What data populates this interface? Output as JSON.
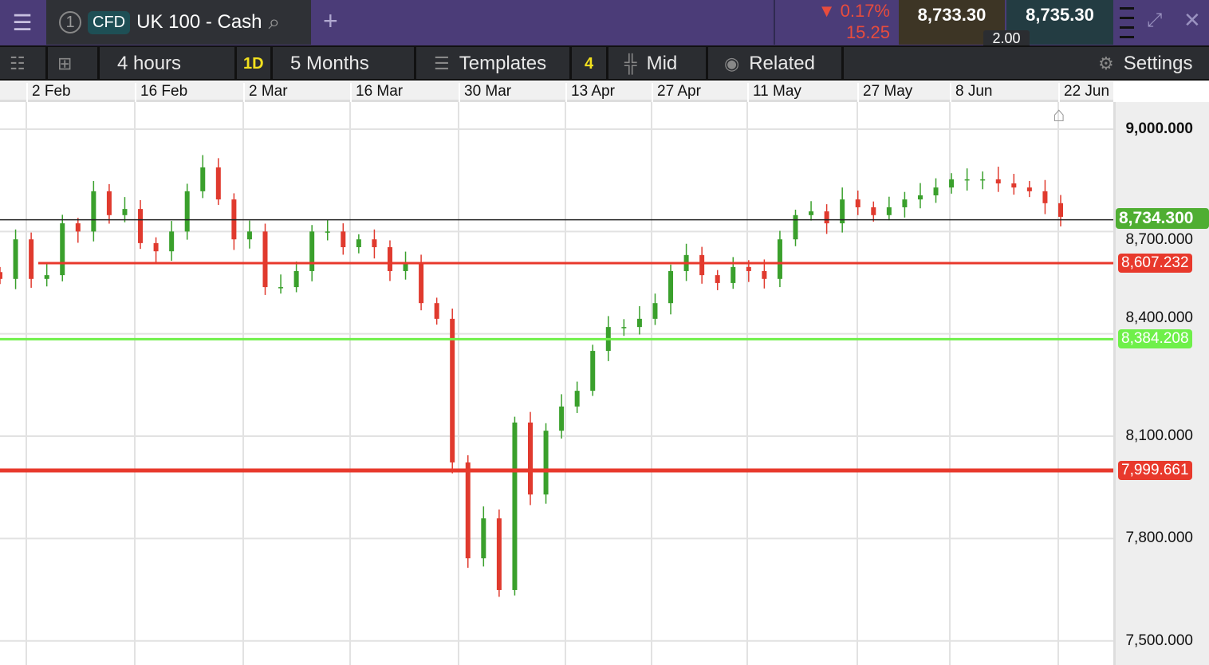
{
  "header": {
    "tab_number": "1",
    "badge": "CFD",
    "instrument": "UK 100 - Cash",
    "change_pct": "0.17%",
    "change_abs": "15.25",
    "sell": "8,733.30",
    "buy": "8,735.30",
    "spread": "2.00"
  },
  "toolbar": {
    "interval": "4 hours",
    "period_badge": "1D",
    "period": "5 Months",
    "templates": "Templates",
    "templates_count": "4",
    "price_type": "Mid",
    "related": "Related",
    "settings": "Settings"
  },
  "colors": {
    "up": "#3aa02c",
    "down": "#e03a2e",
    "header": "#4b3c78",
    "support": "#6ff04a",
    "resistance": "#e8392c"
  },
  "chart_data": {
    "type": "candlestick",
    "x_ticks": [
      "2 Feb",
      "16 Feb",
      "2 Mar",
      "16 Mar",
      "30 Mar",
      "13 Apr",
      "27 Apr",
      "11 May",
      "27 May",
      "8 Jun",
      "22 Jun"
    ],
    "y_ticks": [
      "9,000.000",
      "8,700.000",
      "8,400.000",
      "8,100.000",
      "7,800.000",
      "7,500.000"
    ],
    "ylim": [
      7440,
      9075
    ],
    "closes": [
      8561,
      8677,
      8561,
      8572,
      8724,
      8700,
      8818,
      8748,
      8766,
      8666,
      8642,
      8700,
      8818,
      8888,
      8794,
      8677,
      8700,
      8537,
      8537,
      8584,
      8700,
      8700,
      8654,
      8677,
      8654,
      8584,
      8607,
      8490,
      8444,
      8023,
      7742,
      7859,
      7649,
      8140,
      7929,
      8116,
      8187,
      8233,
      8350,
      8420,
      8420,
      8444,
      8490,
      8584,
      8631,
      8572,
      8549,
      8596,
      8584,
      8561,
      8677,
      8748,
      8759,
      8724,
      8794,
      8771,
      8748,
      8771,
      8794,
      8806,
      8829,
      8853,
      8853,
      8853,
      8841,
      8829,
      8818,
      8783,
      8743
    ],
    "grid": true,
    "levels": [
      {
        "label": "8,734.300",
        "value": 8734.3,
        "kind": "last-price"
      },
      {
        "label": "8,607.232",
        "value": 8607.232,
        "kind": "resistance"
      },
      {
        "label": "8,384.208",
        "value": 8384.208,
        "kind": "support"
      },
      {
        "label": "7,999.661",
        "value": 7999.661,
        "kind": "resistance"
      }
    ]
  }
}
